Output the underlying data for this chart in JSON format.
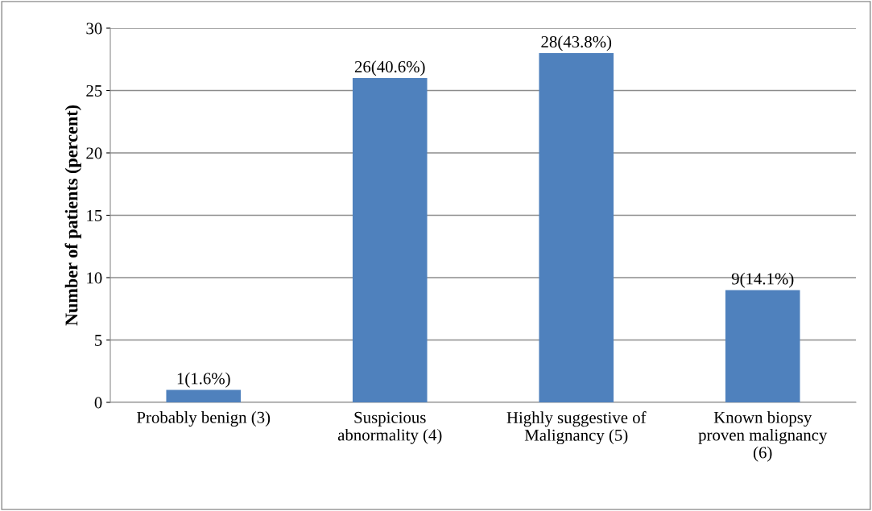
{
  "chart_data": {
    "type": "bar",
    "ylabel": "Number of patients (percent)",
    "categories": [
      "Probably benign (3)",
      "Suspicious\nabnormality (4)",
      "Highly suggestive of\nMalignancy (5)",
      "Known biopsy\nproven malignancy\n(6)"
    ],
    "values": [
      1,
      26,
      28,
      9
    ],
    "value_labels": [
      "1(1.6%)",
      "26(40.6%)",
      "28(43.8%)",
      "9(14.1%)"
    ],
    "color": "#4f81bd",
    "ylim": [
      0,
      30
    ],
    "yticks": [
      0,
      5,
      10,
      15,
      20,
      25,
      30
    ],
    "grid": "y",
    "legend": false
  }
}
